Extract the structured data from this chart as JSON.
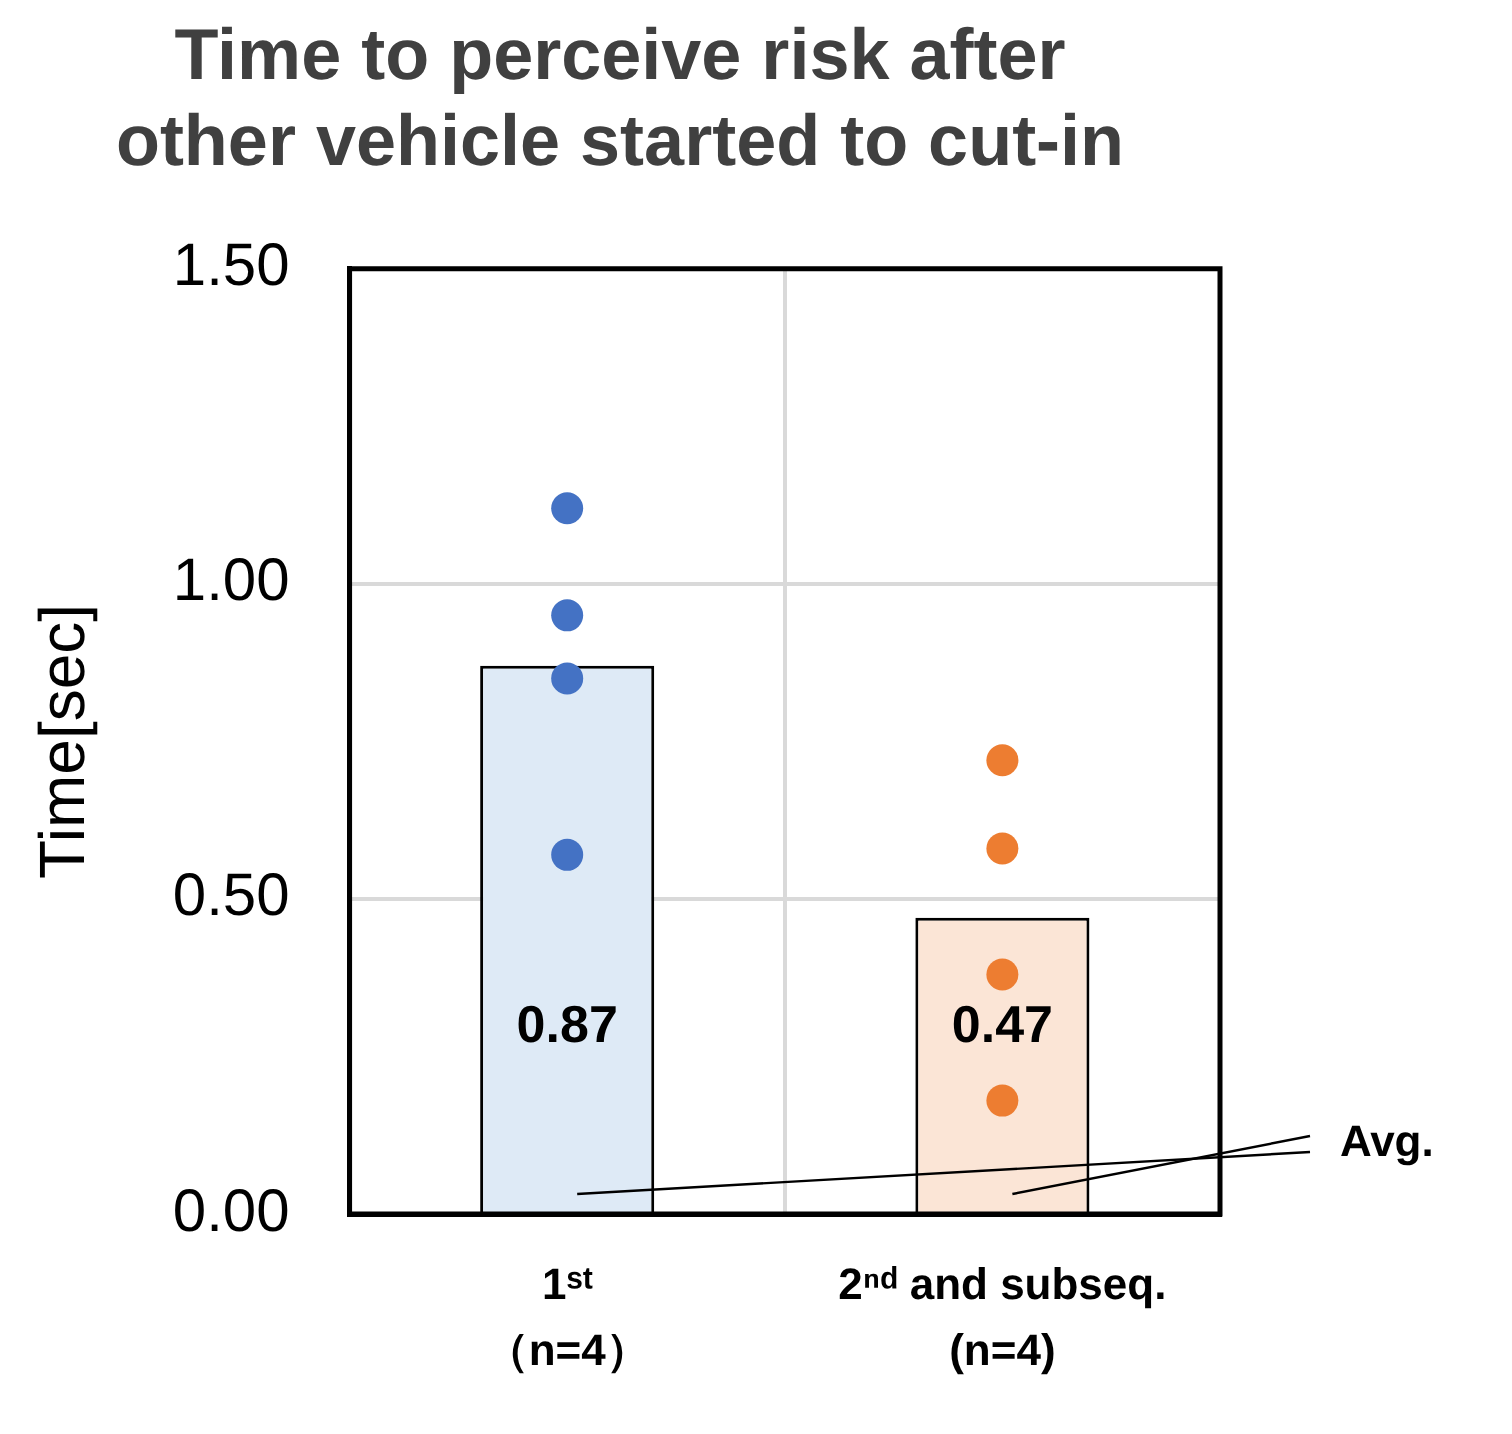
{
  "chart_data": {
    "type": "bar",
    "title": "Time to perceive risk after\nother vehicle started to cut-in",
    "ylabel": "Time[sec]",
    "categories": [
      "1ˢᵗ\n（n=4）",
      "2ⁿᵈ and subseq.\n(n=4)"
    ],
    "series": [
      {
        "type": "bar",
        "colors": [
          "#deeaf6",
          "#fbe5d6"
        ],
        "values": [
          0.87,
          0.47
        ],
        "value_labels": [
          "0.87",
          "0.47"
        ]
      },
      {
        "type": "scatter",
        "color": "#4472c4",
        "x": [
          "1ˢᵗ\n（n=4）",
          "1ˢᵗ\n（n=4）",
          "1ˢᵗ\n（n=4）",
          "1ˢᵗ\n（n=4）"
        ],
        "values": [
          1.12,
          0.95,
          0.85,
          0.57
        ]
      },
      {
        "type": "scatter",
        "color": "#ed7d31",
        "x": [
          "2ⁿᵈ and subseq.\n(n=4)",
          "2ⁿᵈ and subseq.\n(n=4)",
          "2ⁿᵈ and subseq.\n(n=4)",
          "2ⁿᵈ and subseq.\n(n=4)"
        ],
        "values": [
          0.72,
          0.58,
          0.38,
          0.18
        ]
      }
    ],
    "ylim": [
      0,
      1.5
    ],
    "yticks": [
      {
        "value": 0,
        "label": "0.00"
      },
      {
        "value": 0.5,
        "label": "0.50"
      },
      {
        "value": 1,
        "label": "1.00"
      },
      {
        "value": 1.5,
        "label": "1.50"
      }
    ],
    "grid": true,
    "legend": false,
    "marker": "circle",
    "annotations": [
      "Avg."
    ]
  }
}
